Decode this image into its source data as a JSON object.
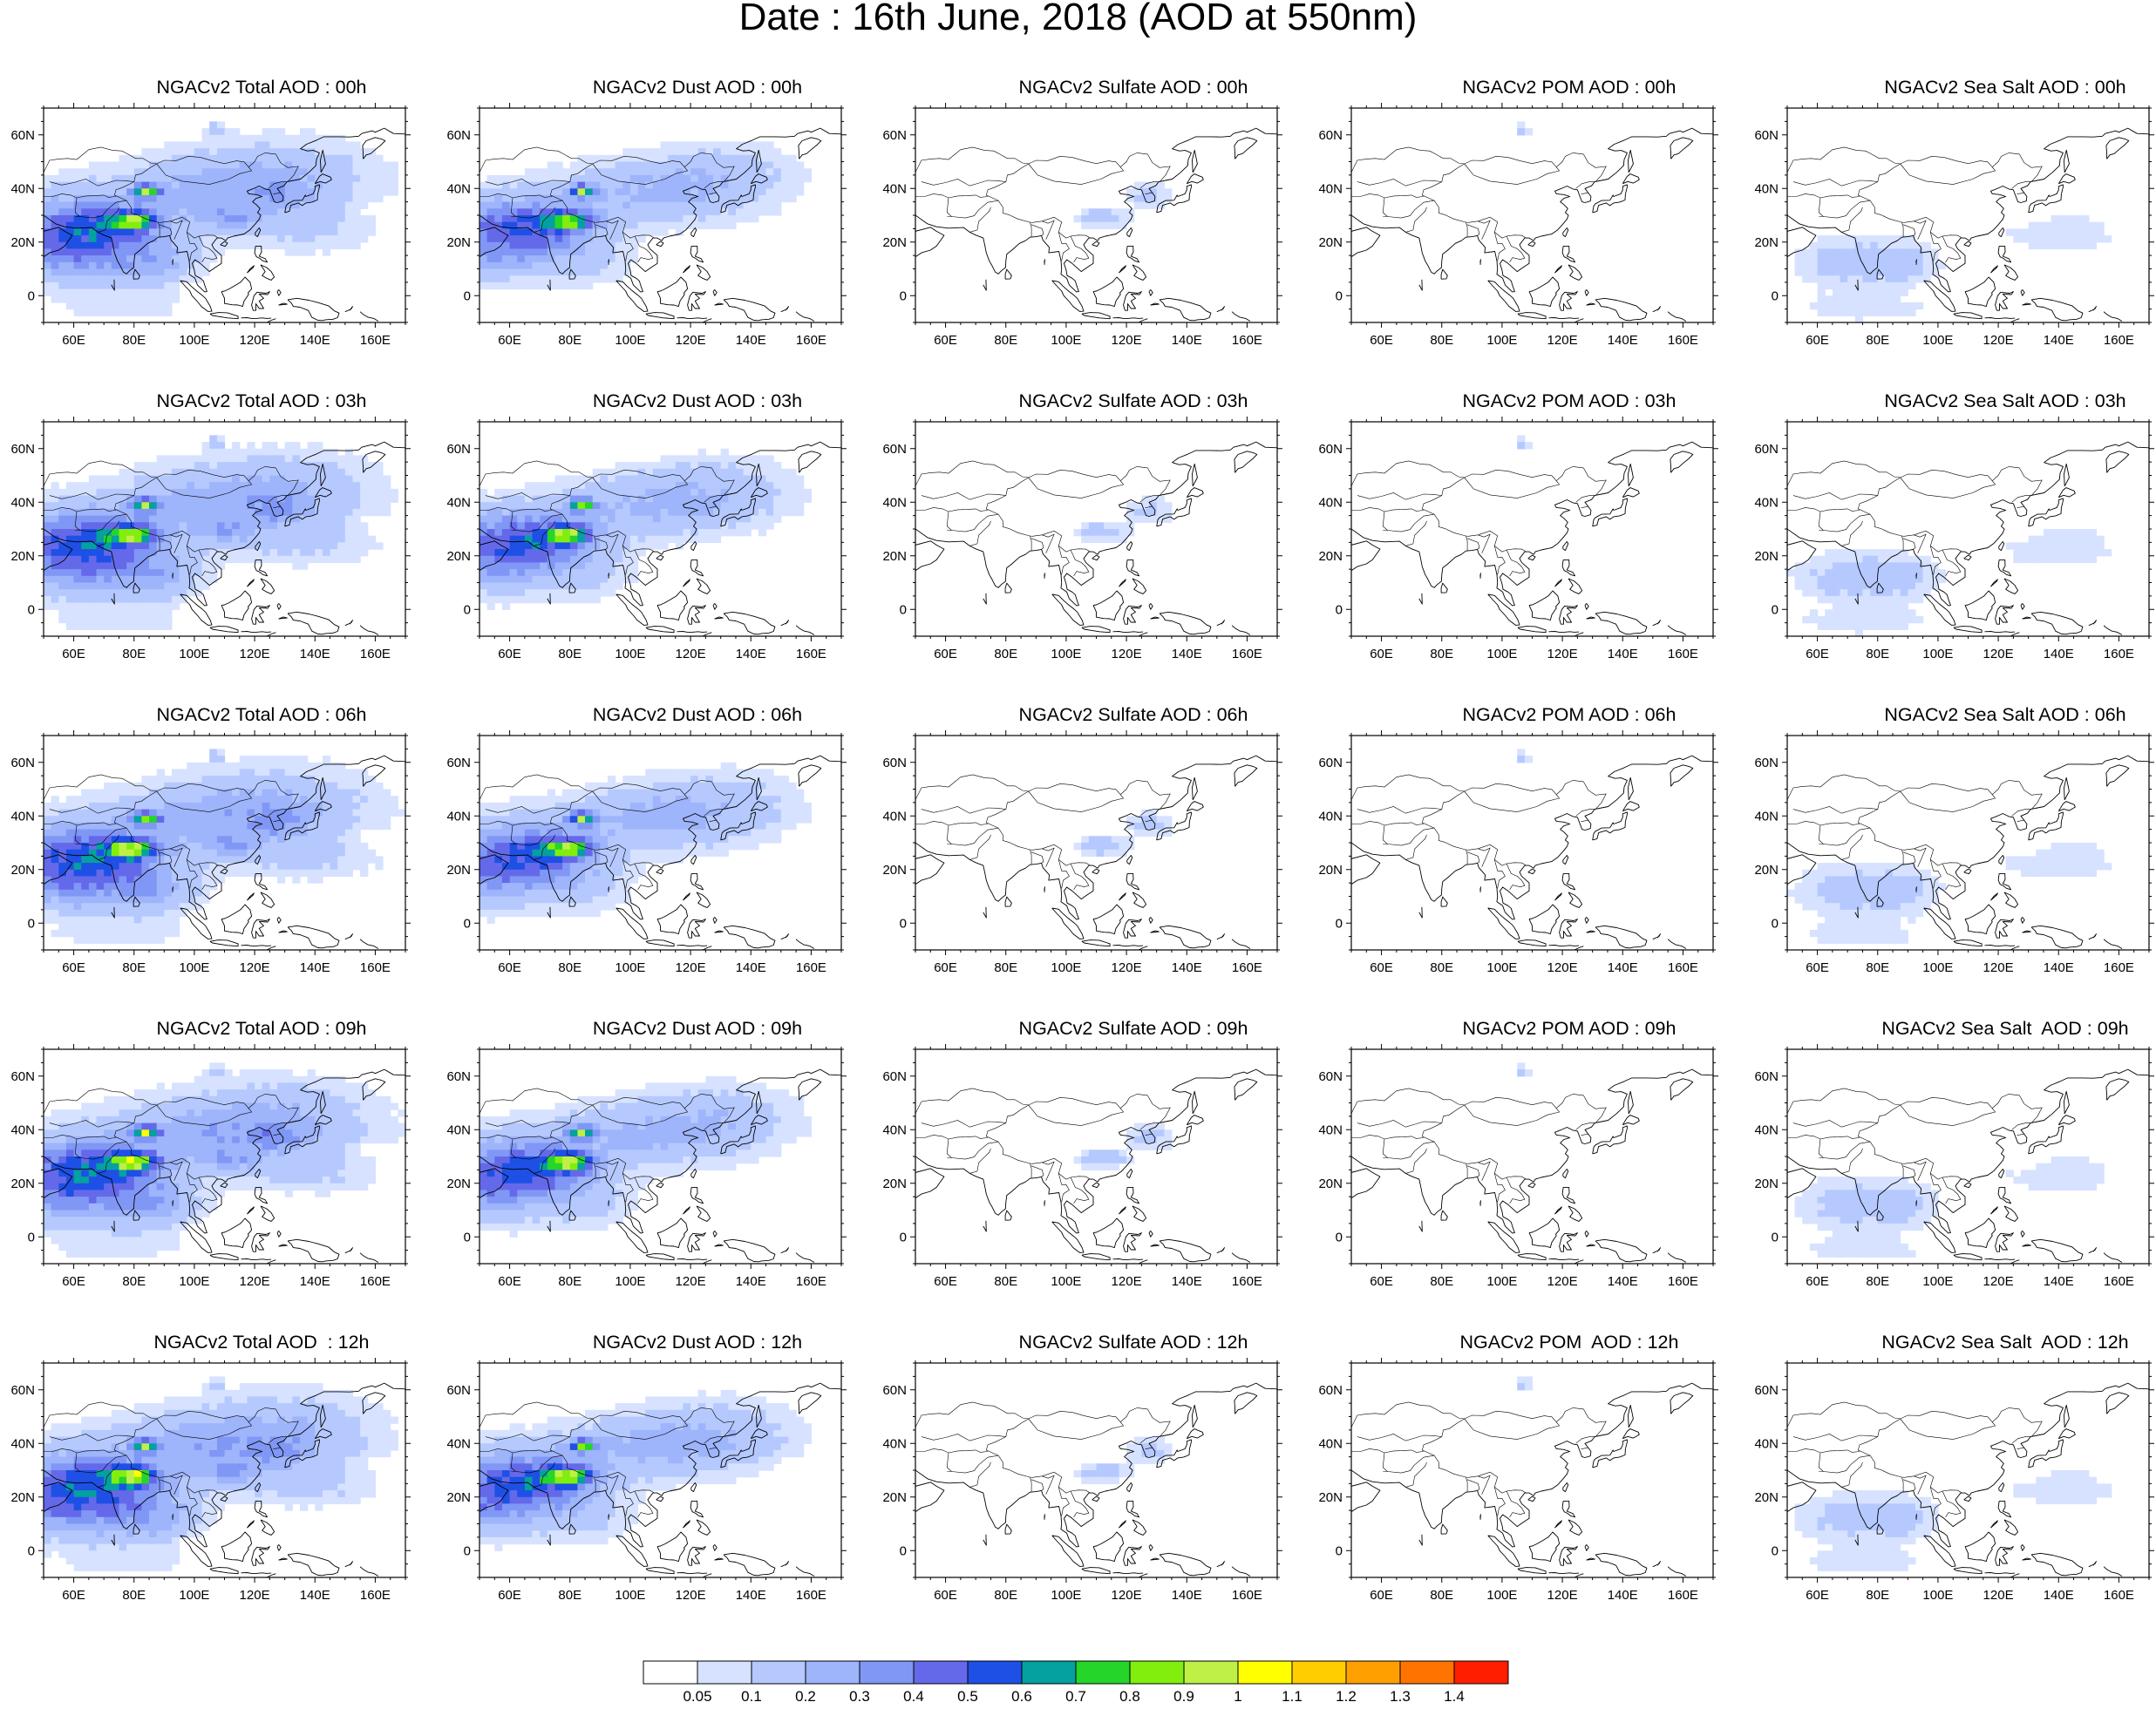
{
  "title": "Date : 16th June, 2018 (AOD at 550nm)",
  "panels": [
    [
      {
        "title": "NGACv2 Total AOD : 00h",
        "field": "total",
        "scale": 0.96
      },
      {
        "title": "NGACv2 Dust AOD : 00h",
        "field": "dust",
        "scale": 0.96
      },
      {
        "title": "NGACv2 Sulfate AOD : 00h",
        "field": "sulfate",
        "scale": 1.0
      },
      {
        "title": "NGACv2 POM AOD : 00h",
        "field": "pom",
        "scale": 1.0
      },
      {
        "title": "NGACv2 Sea Salt AOD : 00h",
        "field": "seasalt",
        "scale": 1.0
      }
    ],
    [
      {
        "title": "NGACv2 Total AOD : 03h",
        "field": "total",
        "scale": 0.98
      },
      {
        "title": "NGACv2 Dust AOD : 03h",
        "field": "dust",
        "scale": 0.98
      },
      {
        "title": "NGACv2 Sulfate AOD : 03h",
        "field": "sulfate",
        "scale": 1.0
      },
      {
        "title": "NGACv2 POM AOD : 03h",
        "field": "pom",
        "scale": 1.0
      },
      {
        "title": "NGACv2 Sea Salt AOD : 03h",
        "field": "seasalt",
        "scale": 1.02
      }
    ],
    [
      {
        "title": "NGACv2 Total AOD : 06h",
        "field": "total",
        "scale": 1.0
      },
      {
        "title": "NGACv2 Dust AOD : 06h",
        "field": "dust",
        "scale": 1.0
      },
      {
        "title": "NGACv2 Sulfate AOD : 06h",
        "field": "sulfate",
        "scale": 1.0
      },
      {
        "title": "NGACv2 POM AOD : 06h",
        "field": "pom",
        "scale": 1.0
      },
      {
        "title": "NGACv2 Sea Salt AOD : 06h",
        "field": "seasalt",
        "scale": 1.0
      }
    ],
    [
      {
        "title": "NGACv2 Total AOD : 09h",
        "field": "total",
        "scale": 1.02
      },
      {
        "title": "NGACv2 Dust AOD : 09h",
        "field": "dust",
        "scale": 1.02
      },
      {
        "title": "NGACv2 Sulfate AOD : 09h",
        "field": "sulfate",
        "scale": 1.0
      },
      {
        "title": "NGACv2 POM AOD : 09h",
        "field": "pom",
        "scale": 1.0
      },
      {
        "title": "NGACv2 Sea Salt  AOD : 09h",
        "field": "seasalt",
        "scale": 0.98
      }
    ],
    [
      {
        "title": "NGACv2 Total AOD  : 12h",
        "field": "total",
        "scale": 1.03
      },
      {
        "title": "NGACv2 Dust AOD : 12h",
        "field": "dust",
        "scale": 1.03
      },
      {
        "title": "NGACv2 Sulfate AOD : 12h",
        "field": "sulfate",
        "scale": 1.0
      },
      {
        "title": "NGACv2 POM  AOD : 12h",
        "field": "pom",
        "scale": 1.0
      },
      {
        "title": "NGACv2 Sea Salt  AOD : 12h",
        "field": "seasalt",
        "scale": 0.96
      }
    ]
  ],
  "map": {
    "lon_range": [
      50,
      170
    ],
    "lat_range": [
      -10,
      70
    ],
    "lon_ticks": [
      "60E",
      "80E",
      "100E",
      "120E",
      "140E",
      "160E"
    ],
    "lat_ticks": [
      "0",
      "20N",
      "40N",
      "60N"
    ]
  },
  "colorbar": {
    "labels": [
      "0.05",
      "0.1",
      "0.2",
      "0.3",
      "0.4",
      "0.5",
      "0.6",
      "0.7",
      "0.8",
      "0.9",
      "1",
      "1.1",
      "1.2",
      "1.3",
      "1.4"
    ],
    "colors": [
      "#ffffff",
      "#d6e2ff",
      "#b5c9ff",
      "#9eb4fb",
      "#8097f5",
      "#6469ea",
      "#1e50e6",
      "#05a0a0",
      "#25d52a",
      "#82ee0e",
      "#bef046",
      "#ffff00",
      "#ffcd00",
      "#ffa000",
      "#ff7300",
      "#ff1e00"
    ]
  }
}
